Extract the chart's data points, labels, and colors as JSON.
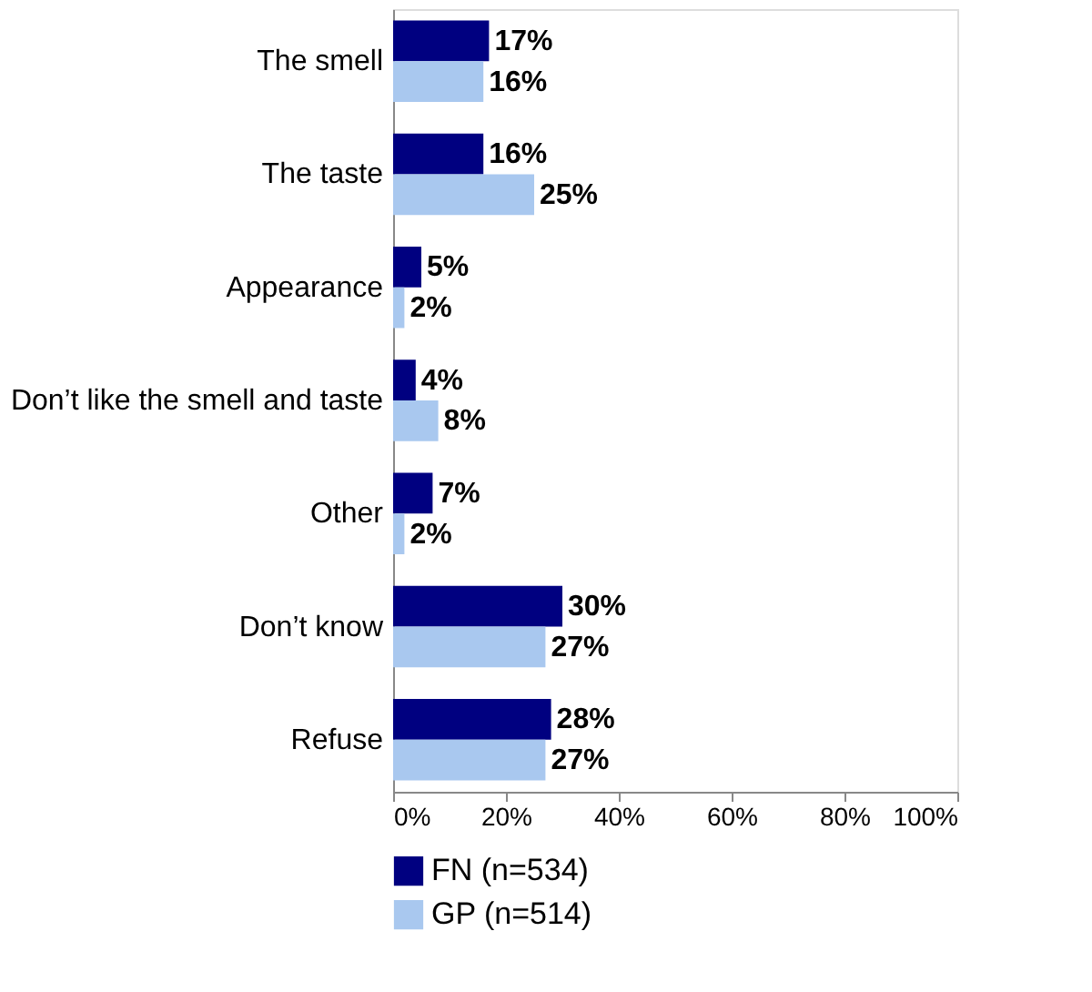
{
  "chart_data": {
    "type": "bar",
    "orientation": "horizontal",
    "categories": [
      "The smell",
      "The taste",
      "Appearance",
      "Don’t like the smell and taste",
      "Other",
      "Don’t know",
      "Refuse"
    ],
    "series": [
      {
        "name": "FN (n=534)",
        "color": "#000080",
        "values": [
          17,
          16,
          5,
          4,
          7,
          30,
          28
        ],
        "value_labels": [
          "17%",
          "16%",
          "5%",
          "4%",
          "7%",
          "30%",
          "28%"
        ]
      },
      {
        "name": "GP (n=514)",
        "color": "#a9c8ef",
        "values": [
          16,
          25,
          2,
          8,
          2,
          27,
          27
        ],
        "value_labels": [
          "16%",
          "25%",
          "2%",
          "8%",
          "2%",
          "27%",
          "27%"
        ]
      }
    ],
    "xlim": [
      0,
      100
    ],
    "xticks": [
      {
        "value": 0,
        "label": "0%"
      },
      {
        "value": 20,
        "label": "20%"
      },
      {
        "value": 40,
        "label": "40%"
      },
      {
        "value": 60,
        "label": "60%"
      },
      {
        "value": 80,
        "label": "80%"
      },
      {
        "value": 100,
        "label": "100%"
      }
    ],
    "grid": false,
    "legend": "bottom"
  }
}
